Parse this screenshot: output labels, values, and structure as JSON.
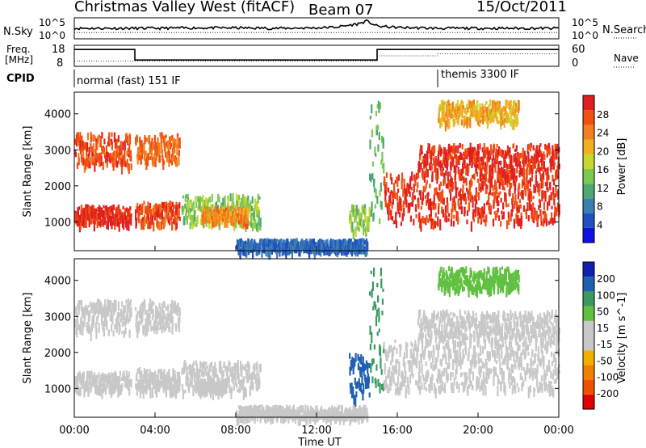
{
  "header": {
    "station": "Christmas Valley West (fitACF)",
    "beam": "Beam 07",
    "date": "15/Oct/2011"
  },
  "strip_labels": {
    "nsky": "N.Sky",
    "nsearch": "N.Search",
    "freq_line1": "Freq.",
    "freq_line2": "[MHz]",
    "nave": "Nave",
    "cpid": "CPID"
  },
  "colors": {
    "power_scale": [
      "#1010e0",
      "#2050c0",
      "#3a7fb0",
      "#4caa70",
      "#7ec850",
      "#c8d630",
      "#f0b020",
      "#f08020",
      "#f05010",
      "#e02020"
    ],
    "velocity_scale": [
      "#e00000",
      "#f05000",
      "#f08000",
      "#f0b000",
      "#c8c8c8",
      "#c8c8c8",
      "#60c040",
      "#3a9a60",
      "#2060b0",
      "#1020b0"
    ]
  },
  "chart_data": [
    {
      "type": "line",
      "name": "noise",
      "ylabel_left": "N.Sky",
      "ylabel_right": "N.Search",
      "left_ticks": [
        "10^5",
        "10^0"
      ],
      "right_ticks": [
        "10^5",
        "10^0"
      ],
      "x": [
        "00:00",
        "02:00",
        "04:00",
        "06:00",
        "08:00",
        "10:00",
        "12:00",
        "13:00",
        "14:00",
        "14:30",
        "15:00",
        "16:00",
        "18:00",
        "19:00",
        "20:00",
        "22:00",
        "24:00"
      ],
      "sky_level": [
        2.5,
        2.5,
        2.5,
        2.6,
        2.6,
        2.5,
        2.6,
        2.8,
        3.5,
        4.2,
        3.0,
        2.7,
        2.5,
        2.5,
        2.5,
        2.5,
        2.5
      ],
      "search_level": [
        1.5,
        1.5,
        1.5,
        1.5,
        1.5,
        1.5,
        1.5,
        1.5,
        1.5,
        1.5,
        1.5,
        1.5,
        1.5,
        1.5,
        1.5,
        1.5,
        1.5
      ]
    },
    {
      "type": "line",
      "name": "frequency",
      "ylabel_left": "Freq. [MHz]",
      "ylabel_right": "Nave",
      "left_ticks": [
        "18",
        "8"
      ],
      "right_ticks": [
        "60",
        "0"
      ],
      "x_hours": [
        0,
        3,
        3,
        15,
        15,
        24
      ],
      "freq_mhz": [
        16,
        16,
        11,
        11,
        16,
        16
      ],
      "nave_hours": [
        0,
        15,
        15,
        18,
        18,
        24
      ],
      "nave": [
        15,
        15,
        30,
        30,
        36,
        36
      ]
    },
    {
      "type": "table",
      "name": "cpid",
      "segments": [
        {
          "start": 0,
          "end": 18,
          "label": "normal (fast) 151 IF"
        },
        {
          "start": 18,
          "end": 24,
          "label": "themis 3300 IF"
        }
      ]
    },
    {
      "type": "heatmap",
      "name": "power",
      "title": "",
      "xlabel": "",
      "ylabel": "Slant Range [km]",
      "xlim": [
        0,
        24
      ],
      "ylim": [
        200,
        4600
      ],
      "y_ticks": [
        1000,
        2000,
        3000,
        4000
      ],
      "colorbar_label": "Power [dB]",
      "colorbar_ticks": [
        4,
        8,
        12,
        16,
        20,
        24,
        28
      ],
      "colorbar_range": [
        0,
        30
      ],
      "regions": [
        {
          "t0": 0.0,
          "t1": 2.8,
          "r0": 1000,
          "r1": 1500,
          "value": 28
        },
        {
          "t0": 0.0,
          "t1": 2.8,
          "r0": 2600,
          "r1": 3500,
          "value": 26
        },
        {
          "t0": 3.0,
          "t1": 5.2,
          "r0": 1000,
          "r1": 1600,
          "value": 26
        },
        {
          "t0": 3.0,
          "t1": 5.2,
          "r0": 2700,
          "r1": 3500,
          "value": 24
        },
        {
          "t0": 5.3,
          "t1": 9.2,
          "r0": 950,
          "r1": 1800,
          "value": 14
        },
        {
          "t0": 6.3,
          "t1": 8.6,
          "r0": 1050,
          "r1": 1450,
          "value": 22
        },
        {
          "t0": 8.0,
          "t1": 14.5,
          "r0": 250,
          "r1": 550,
          "value": 6
        },
        {
          "t0": 13.6,
          "t1": 14.6,
          "r0": 800,
          "r1": 1500,
          "value": 14
        },
        {
          "t0": 14.6,
          "t1": 15.3,
          "r0": 1000,
          "r1": 4500,
          "value": 12
        },
        {
          "t0": 15.3,
          "t1": 24.0,
          "r0": 1000,
          "r1": 2400,
          "value": 27
        },
        {
          "t0": 17.0,
          "t1": 24.0,
          "r0": 2400,
          "r1": 3200,
          "value": 28
        },
        {
          "t0": 18.0,
          "t1": 22.0,
          "r0": 3800,
          "r1": 4400,
          "value": 20
        }
      ]
    },
    {
      "type": "heatmap",
      "name": "velocity",
      "title": "",
      "xlabel": "Time UT",
      "ylabel": "Slant Range [km]",
      "xlim": [
        0,
        24
      ],
      "ylim": [
        200,
        4600
      ],
      "x_ticks": [
        "00:00",
        "04:00",
        "08:00",
        "12:00",
        "16:00",
        "20:00",
        "00:00"
      ],
      "y_ticks": [
        1000,
        2000,
        3000,
        4000
      ],
      "colorbar_label": "Velocity [m s^-1]",
      "colorbar_ticks": [
        -200,
        -100,
        -50,
        -15,
        15,
        50,
        100,
        200
      ],
      "regions": [
        {
          "t0": 0.0,
          "t1": 2.8,
          "r0": 1000,
          "r1": 1500,
          "value": 0
        },
        {
          "t0": 0.0,
          "t1": 2.8,
          "r0": 2600,
          "r1": 3500,
          "value": -20
        },
        {
          "t0": 3.0,
          "t1": 5.2,
          "r0": 1000,
          "r1": 1600,
          "value": 0
        },
        {
          "t0": 3.0,
          "t1": 5.2,
          "r0": 2700,
          "r1": 3500,
          "value": -10
        },
        {
          "t0": 5.3,
          "t1": 9.2,
          "r0": 950,
          "r1": 1800,
          "value": -40
        },
        {
          "t0": 6.0,
          "t1": 7.5,
          "r0": 1000,
          "r1": 1300,
          "value": 0
        },
        {
          "t0": 8.0,
          "t1": 14.5,
          "r0": 250,
          "r1": 550,
          "value": -40
        },
        {
          "t0": 13.6,
          "t1": 14.6,
          "r0": 800,
          "r1": 2000,
          "value": 120
        },
        {
          "t0": 14.6,
          "t1": 15.3,
          "r0": 1000,
          "r1": 4500,
          "value": 60
        },
        {
          "t0": 15.3,
          "t1": 24.0,
          "r0": 1000,
          "r1": 2400,
          "value": 0
        },
        {
          "t0": 17.0,
          "t1": 24.0,
          "r0": 2400,
          "r1": 3200,
          "value": 0
        },
        {
          "t0": 18.0,
          "t1": 22.0,
          "r0": 3800,
          "r1": 4400,
          "value": 30
        }
      ]
    }
  ]
}
